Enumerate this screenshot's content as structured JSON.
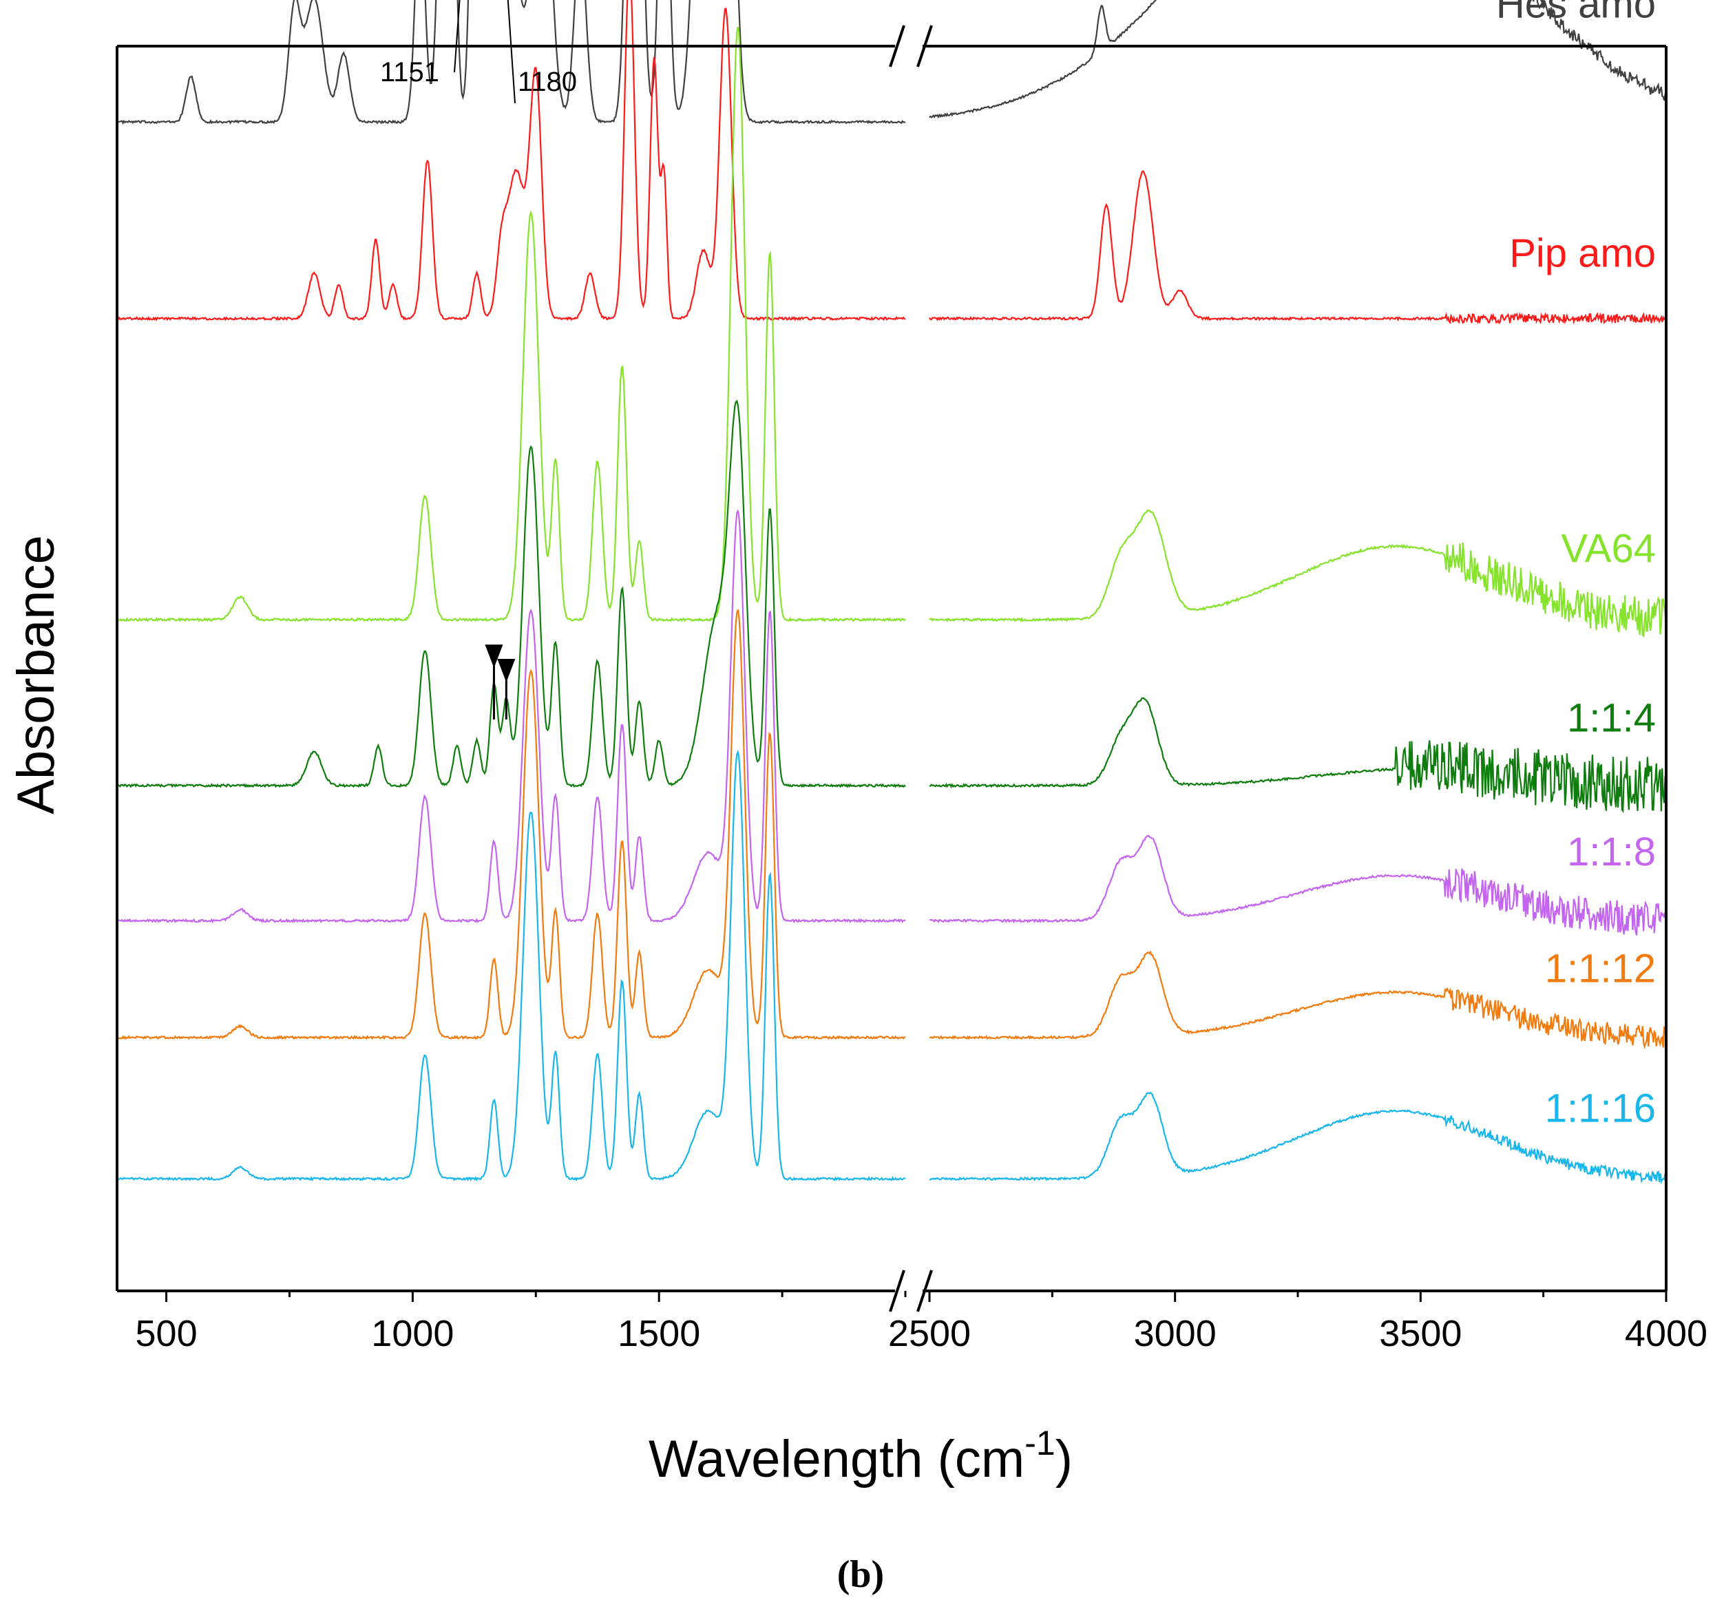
{
  "chart_data": {
    "type": "line",
    "xlabel": "Wavelength (cm-1)",
    "xlabel_main": "Wavelength (cm",
    "xlabel_sup": "-1",
    "xlabel_close": ")",
    "ylabel": "Absorbance",
    "panel_label": "(b)",
    "x_axis_broken": true,
    "segments": [
      {
        "xlim": [
          400,
          2000
        ],
        "ticks": [
          500,
          1000,
          1500
        ],
        "tick_labels": [
          "500",
          "1000",
          "1500"
        ]
      },
      {
        "xlim": [
          2500,
          4000
        ],
        "ticks": [
          2500,
          3000,
          3500,
          4000
        ],
        "tick_labels": [
          "2500",
          "3000",
          "3500",
          "4000"
        ]
      }
    ],
    "y_ticks_shown": false,
    "grid": false,
    "series": [
      {
        "name": "Hes amo",
        "color": "#404040",
        "baseline": 0.94,
        "scale": 0.46,
        "peaks": [
          [
            550,
            0.08,
            10
          ],
          [
            760,
            0.2,
            12
          ],
          [
            800,
            0.22,
            18
          ],
          [
            860,
            0.12,
            12
          ],
          [
            1015,
            0.38,
            10
          ],
          [
            1060,
            0.48,
            10
          ],
          [
            1080,
            0.46,
            9
          ],
          [
            1125,
            0.55,
            9
          ],
          [
            1151,
            0.68,
            9
          ],
          [
            1180,
            0.4,
            10
          ],
          [
            1205,
            0.3,
            14
          ],
          [
            1260,
            0.62,
            18
          ],
          [
            1340,
            0.32,
            12
          ],
          [
            1440,
            0.52,
            10
          ],
          [
            1460,
            0.48,
            10
          ],
          [
            1510,
            0.6,
            10
          ],
          [
            1590,
            0.7,
            18
          ],
          [
            1640,
            0.72,
            14
          ],
          [
            2850,
            0.08,
            8
          ]
        ],
        "bands": [
          [
            3350,
            0.5,
            300
          ]
        ],
        "noise_ranges": [
          [
            3550,
            4000,
            0.012
          ]
        ]
      },
      {
        "name": "Pip amo",
        "color": "#ff1a1a",
        "baseline": 0.78,
        "scale": 0.46,
        "peaks": [
          [
            800,
            0.08,
            12
          ],
          [
            850,
            0.06,
            8
          ],
          [
            925,
            0.14,
            8
          ],
          [
            960,
            0.06,
            8
          ],
          [
            1030,
            0.28,
            10
          ],
          [
            1130,
            0.08,
            8
          ],
          [
            1180,
            0.1,
            10
          ],
          [
            1210,
            0.26,
            18
          ],
          [
            1250,
            0.42,
            12
          ],
          [
            1360,
            0.08,
            10
          ],
          [
            1440,
            0.62,
            10
          ],
          [
            1490,
            0.46,
            8
          ],
          [
            1510,
            0.25,
            6
          ],
          [
            1590,
            0.12,
            14
          ],
          [
            1635,
            0.55,
            12
          ],
          [
            2860,
            0.2,
            12
          ],
          [
            2935,
            0.26,
            20
          ],
          [
            3010,
            0.05,
            15
          ]
        ],
        "bands": [],
        "noise_ranges": [
          [
            3550,
            4000,
            0.008
          ]
        ]
      },
      {
        "name": "VA64",
        "color": "#86e32b",
        "baseline": 0.535,
        "scale": 0.46,
        "peaks": [
          [
            650,
            0.04,
            15
          ],
          [
            1025,
            0.22,
            12
          ],
          [
            1240,
            0.72,
            16
          ],
          [
            1290,
            0.28,
            8
          ],
          [
            1375,
            0.28,
            10
          ],
          [
            1425,
            0.45,
            9
          ],
          [
            1460,
            0.14,
            8
          ],
          [
            1660,
            1.05,
            14
          ],
          [
            1725,
            0.65,
            9
          ],
          [
            2890,
            0.1,
            25
          ],
          [
            2950,
            0.18,
            30
          ]
        ],
        "bands": [
          [
            3450,
            0.13,
            200
          ]
        ],
        "noise_ranges": [
          [
            3550,
            4000,
            0.035
          ]
        ]
      },
      {
        "name": "1:1:4",
        "color": "#0e7d0e",
        "baseline": 0.4,
        "scale": 0.46,
        "peaks": [
          [
            800,
            0.06,
            15
          ],
          [
            930,
            0.07,
            8
          ],
          [
            1025,
            0.24,
            12
          ],
          [
            1090,
            0.07,
            8
          ],
          [
            1130,
            0.08,
            8
          ],
          [
            1165,
            0.18,
            8
          ],
          [
            1190,
            0.15,
            8
          ],
          [
            1240,
            0.6,
            16
          ],
          [
            1290,
            0.25,
            8
          ],
          [
            1375,
            0.22,
            10
          ],
          [
            1425,
            0.35,
            9
          ],
          [
            1460,
            0.15,
            8
          ],
          [
            1500,
            0.08,
            8
          ],
          [
            1620,
            0.3,
            30
          ],
          [
            1660,
            0.55,
            16
          ],
          [
            1725,
            0.49,
            9
          ],
          [
            2890,
            0.08,
            25
          ],
          [
            2940,
            0.14,
            25
          ]
        ],
        "bands": [
          [
            3500,
            0.03,
            200
          ]
        ],
        "noise_ranges": [
          [
            3450,
            4000,
            0.05
          ]
        ]
      },
      {
        "name": "1:1:8",
        "color": "#c465f0",
        "baseline": 0.29,
        "scale": 0.46,
        "peaks": [
          [
            650,
            0.02,
            15
          ],
          [
            1025,
            0.22,
            12
          ],
          [
            1165,
            0.14,
            8
          ],
          [
            1240,
            0.55,
            16
          ],
          [
            1290,
            0.22,
            8
          ],
          [
            1375,
            0.22,
            10
          ],
          [
            1425,
            0.35,
            9
          ],
          [
            1460,
            0.15,
            8
          ],
          [
            1600,
            0.12,
            30
          ],
          [
            1660,
            0.71,
            14
          ],
          [
            1725,
            0.55,
            9
          ],
          [
            2890,
            0.1,
            25
          ],
          [
            2950,
            0.14,
            25
          ]
        ],
        "bands": [
          [
            3450,
            0.08,
            200
          ]
        ],
        "noise_ranges": [
          [
            3550,
            4000,
            0.03
          ]
        ]
      },
      {
        "name": "1:1:12",
        "color": "#f27b0f",
        "baseline": 0.195,
        "scale": 0.46,
        "peaks": [
          [
            650,
            0.02,
            15
          ],
          [
            1025,
            0.22,
            12
          ],
          [
            1165,
            0.14,
            8
          ],
          [
            1240,
            0.65,
            16
          ],
          [
            1290,
            0.22,
            8
          ],
          [
            1375,
            0.22,
            10
          ],
          [
            1425,
            0.35,
            9
          ],
          [
            1460,
            0.15,
            8
          ],
          [
            1600,
            0.12,
            30
          ],
          [
            1660,
            0.74,
            14
          ],
          [
            1725,
            0.54,
            9
          ],
          [
            2890,
            0.1,
            25
          ],
          [
            2950,
            0.14,
            25
          ]
        ],
        "bands": [
          [
            3450,
            0.08,
            200
          ]
        ],
        "noise_ranges": [
          [
            3550,
            4000,
            0.02
          ]
        ]
      },
      {
        "name": "1:1:16",
        "color": "#19b6ec",
        "baseline": 0.08,
        "scale": 0.46,
        "peaks": [
          [
            650,
            0.02,
            15
          ],
          [
            1025,
            0.22,
            12
          ],
          [
            1165,
            0.14,
            8
          ],
          [
            1240,
            0.65,
            16
          ],
          [
            1290,
            0.22,
            8
          ],
          [
            1375,
            0.22,
            10
          ],
          [
            1425,
            0.35,
            9
          ],
          [
            1460,
            0.15,
            8
          ],
          [
            1600,
            0.12,
            30
          ],
          [
            1660,
            0.74,
            14
          ],
          [
            1725,
            0.54,
            9
          ],
          [
            2890,
            0.1,
            25
          ],
          [
            2950,
            0.14,
            25
          ]
        ],
        "bands": [
          [
            3450,
            0.12,
            200
          ]
        ],
        "noise_ranges": [
          [
            3550,
            4000,
            0.01
          ]
        ]
      }
    ],
    "annotations": [
      {
        "text": "1151",
        "x": 1151,
        "series": "Hes amo"
      },
      {
        "text": "1180",
        "x": 1180,
        "series": "Hes amo"
      }
    ],
    "arrows": [
      {
        "x": 1165,
        "series": "1:1:4"
      },
      {
        "x": 1190,
        "series": "1:1:4"
      }
    ]
  }
}
